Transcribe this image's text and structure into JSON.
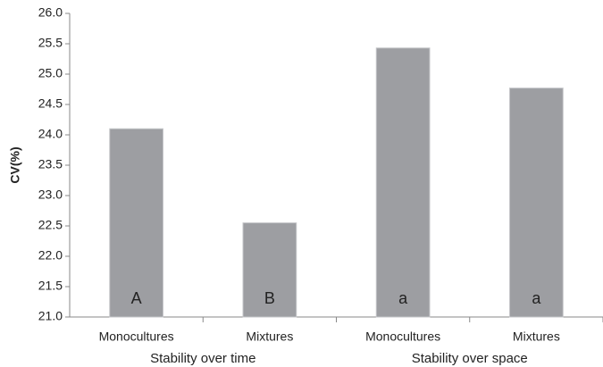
{
  "chart_data": {
    "type": "bar",
    "ylabel": "CV(%)",
    "categories": [
      "Monocultures",
      "Mixtures",
      "Monocultures",
      "Mixtures"
    ],
    "values": [
      24.1,
      22.55,
      25.43,
      24.77
    ],
    "bar_labels": [
      "A",
      "B",
      "a",
      "a"
    ],
    "group_labels": [
      "Stability over time",
      "Stability over space"
    ],
    "color": "#9d9ea2",
    "ylim": [
      21,
      26
    ],
    "yticks": [
      {
        "value": 21,
        "label": "21.0"
      },
      {
        "value": 21.5,
        "label": "21.5"
      },
      {
        "value": 22,
        "label": "22.0"
      },
      {
        "value": 22.5,
        "label": "22.5"
      },
      {
        "value": 23,
        "label": "23.0"
      },
      {
        "value": 23.5,
        "label": "23.5"
      },
      {
        "value": 24,
        "label": "24.0"
      },
      {
        "value": 24.5,
        "label": "24.5"
      },
      {
        "value": 25,
        "label": "25.0"
      },
      {
        "value": 25.5,
        "label": "25.5"
      },
      {
        "value": 26,
        "label": "26.0"
      }
    ]
  }
}
